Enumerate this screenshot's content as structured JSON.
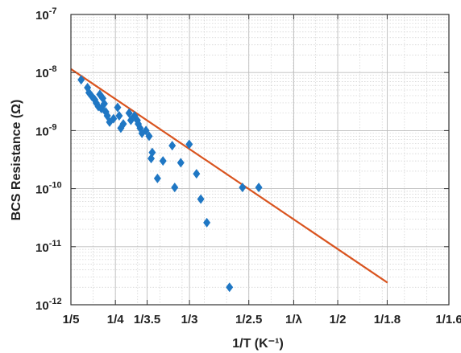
{
  "chart_data": {
    "type": "scatter",
    "title": "",
    "xlabel": "1/T (K⁻¹)",
    "ylabel": "BCS Resistance (Ω)",
    "x_scale": "reciprocal",
    "y_scale": "log",
    "xlim": [
      0.2,
      0.625
    ],
    "ylim": [
      1e-12,
      1e-07
    ],
    "grid": true,
    "x_ticks": [
      {
        "value": 0.2,
        "label": "1/5"
      },
      {
        "value": 0.25,
        "label": "1/4"
      },
      {
        "value": 0.2857,
        "label": "1/3.5"
      },
      {
        "value": 0.3333,
        "label": "1/3"
      },
      {
        "value": 0.4,
        "label": "1/2.5"
      },
      {
        "value": 0.4505,
        "label": "1/λ"
      },
      {
        "value": 0.5,
        "label": "1/2"
      },
      {
        "value": 0.5556,
        "label": "1/1.8"
      },
      {
        "value": 0.625,
        "label": "1/1.6"
      }
    ],
    "y_ticks": [
      {
        "exp": -12,
        "label": "10",
        "sup": "-12"
      },
      {
        "exp": -11,
        "label": "10",
        "sup": "-11"
      },
      {
        "exp": -10,
        "label": "10",
        "sup": "-10"
      },
      {
        "exp": -9,
        "label": "10",
        "sup": "-9"
      },
      {
        "exp": -8,
        "label": "10",
        "sup": "-8"
      },
      {
        "exp": -7,
        "label": "10",
        "sup": "-7"
      }
    ],
    "series": [
      {
        "type": "scatter",
        "marker": "diamond",
        "color": "#1f77c4",
        "points": [
          [
            0.2115,
            7.5e-09
          ],
          [
            0.2187,
            5.5e-09
          ],
          [
            0.2203,
            4.5e-09
          ],
          [
            0.2235,
            3.9e-09
          ],
          [
            0.2268,
            3.4e-09
          ],
          [
            0.2284,
            3e-09
          ],
          [
            0.2308,
            2.6e-09
          ],
          [
            0.2325,
            4.2e-09
          ],
          [
            0.2342,
            2.4e-09
          ],
          [
            0.2358,
            3.6e-09
          ],
          [
            0.2375,
            2.9e-09
          ],
          [
            0.2392,
            2.1e-09
          ],
          [
            0.2409,
            1.8e-09
          ],
          [
            0.2435,
            1.4e-09
          ],
          [
            0.2479,
            1.6e-09
          ],
          [
            0.2525,
            2.5e-09
          ],
          [
            0.2543,
            1.8e-09
          ],
          [
            0.2561,
            1.1e-09
          ],
          [
            0.2589,
            1.3e-09
          ],
          [
            0.2654,
            2e-09
          ],
          [
            0.2674,
            1.5e-09
          ],
          [
            0.2715,
            1.8e-09
          ],
          [
            0.2746,
            1.5e-09
          ],
          [
            0.2757,
            1.3e-09
          ],
          [
            0.2778,
            1.1e-09
          ],
          [
            0.2799,
            9e-10
          ],
          [
            0.2844,
            1e-09
          ],
          [
            0.2879,
            8e-10
          ],
          [
            0.2902,
            3.3e-10
          ],
          [
            0.2914,
            4.2e-10
          ],
          [
            0.2973,
            1.5e-10
          ],
          [
            0.3035,
            3e-10
          ],
          [
            0.3139,
            5.5e-10
          ],
          [
            0.3167,
            1.05e-10
          ],
          [
            0.3235,
            2.8e-10
          ],
          [
            0.333,
            5.8e-10
          ],
          [
            0.3412,
            1.8e-10
          ],
          [
            0.346,
            6.6e-11
          ],
          [
            0.3528,
            2.6e-11
          ],
          [
            0.3783,
            2e-12
          ],
          [
            0.3929,
            1.05e-10
          ],
          [
            0.4112,
            1.05e-10
          ]
        ]
      },
      {
        "type": "line",
        "name": "fit",
        "color": "#d9541f",
        "points": [
          [
            0.2,
            1.15e-08
          ],
          [
            0.556,
            2.4e-12
          ]
        ]
      }
    ]
  }
}
